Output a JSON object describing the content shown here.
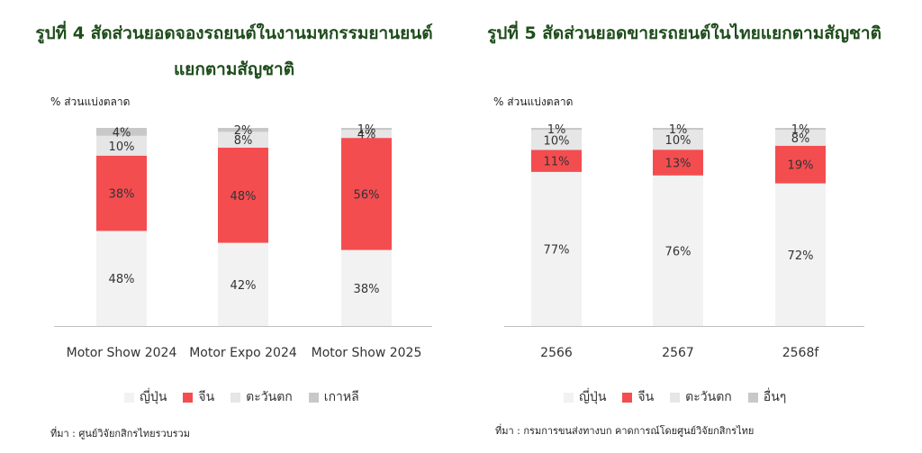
{
  "chart_data": [
    {
      "type": "bar",
      "stacked": true,
      "title_line1": "รูปที่ 4 สัดส่วนยอดจองรถยนต์ในงานมหกรรมยานยนต์",
      "title_line2": "แยกตามสัญชาติ",
      "ylabel": "% ส่วนแบ่งตลาด",
      "categories": [
        "Motor Show 2024",
        "Motor Expo 2024",
        "Motor Show 2025"
      ],
      "series": [
        {
          "name": "ญี่ปุ่น",
          "color": "#f2f2f2",
          "values": [
            48,
            42,
            38
          ]
        },
        {
          "name": "จีน",
          "color": "#f44d50",
          "values": [
            38,
            48,
            56
          ]
        },
        {
          "name": "ตะวันตก",
          "color": "#e6e6e6",
          "values": [
            10,
            8,
            4
          ]
        },
        {
          "name": "เกาหลี",
          "color": "#c8c8c8",
          "values": [
            4,
            2,
            1
          ]
        }
      ],
      "source": "ที่มา : ศูนย์วิจัยกสิกรไทยรวบรวม"
    },
    {
      "type": "bar",
      "stacked": true,
      "title_line1": "รูปที่ 5 สัดส่วนยอดขายรถยนต์ในไทยแยกตามสัญชาติ",
      "ylabel": "% ส่วนแบ่งตลาด",
      "categories": [
        "2566",
        "2567",
        "2568f"
      ],
      "series": [
        {
          "name": "ญี่ปุ่น",
          "color": "#f2f2f2",
          "values": [
            77,
            76,
            72
          ]
        },
        {
          "name": "จีน",
          "color": "#f44d50",
          "values": [
            11,
            13,
            19
          ]
        },
        {
          "name": "ตะวันตก",
          "color": "#e6e6e6",
          "values": [
            10,
            10,
            8
          ]
        },
        {
          "name": "อื่นๆ",
          "color": "#c8c8c8",
          "values": [
            1,
            1,
            1
          ]
        }
      ],
      "source": "ที่มา : กรมการขนส่งทางบก คาดการณ์โดยศูนย์วิจัยกสิกรไทย"
    }
  ]
}
